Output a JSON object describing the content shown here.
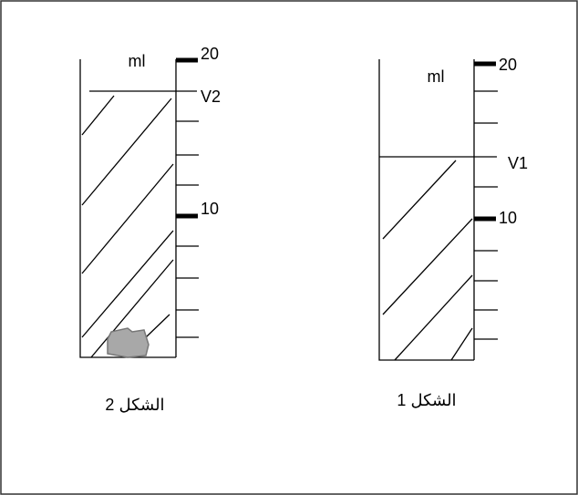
{
  "figures": [
    {
      "unit": "ml",
      "top_mark": "20",
      "level_label": "V2",
      "mid_mark": "10",
      "caption": "الشكل 2"
    },
    {
      "unit": "ml",
      "top_mark": "20",
      "level_label": "V1",
      "mid_mark": "10",
      "caption": "الشكل 1"
    }
  ]
}
